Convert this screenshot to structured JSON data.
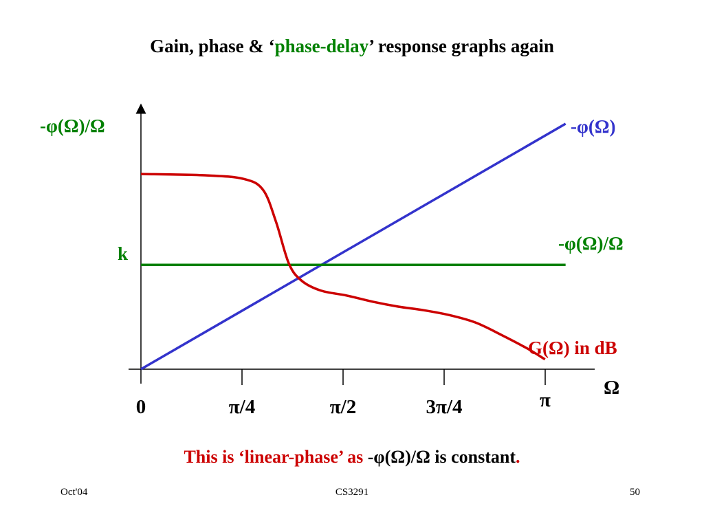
{
  "title": {
    "prefix": "Gain, phase & ‘",
    "highlight": "phase-delay",
    "suffix": "’ response graphs again"
  },
  "caption": {
    "part1": "This is ‘linear-phase’ as ",
    "part2": "-φ(Ω)/Ω",
    "part3": " is constant",
    "part4": "."
  },
  "footer": {
    "left": "Oct'04",
    "center": "CS3291",
    "right": "50"
  },
  "colors": {
    "phase": "#3333cc",
    "delay": "#008000",
    "gain": "#cc0000",
    "axis": "#000000"
  },
  "chart_data": {
    "type": "line",
    "xlabel": "Ω",
    "ylabel": "-φ(Ω)/Ω",
    "x_ticks": [
      "0",
      "π/4",
      "π/2",
      "3π/4",
      "π"
    ],
    "xlim": [
      0,
      3.14159
    ],
    "ylim": [
      0,
      1
    ],
    "y_tick_label": "k",
    "k_level": 0.425,
    "series": [
      {
        "name": "-φ(Ω)",
        "label": "-φ(Ω)",
        "color": "#3333cc",
        "x": [
          0,
          3.3
        ],
        "y": [
          0,
          1.0
        ]
      },
      {
        "name": "-φ(Ω)/Ω",
        "label": "-φ(Ω)/Ω",
        "color": "#008000",
        "x": [
          0,
          3.3
        ],
        "y": [
          0.425,
          0.425
        ]
      },
      {
        "name": "G(Ω) in dB",
        "label": "G(Ω) in dB",
        "color": "#cc0000",
        "x": [
          0,
          0.5,
          0.8,
          0.95,
          1.05,
          1.15,
          1.25,
          1.4,
          1.6,
          1.8,
          2.0,
          2.2,
          2.4,
          2.6,
          2.8,
          3.0,
          3.14
        ],
        "y": [
          0.795,
          0.79,
          0.775,
          0.73,
          0.6,
          0.43,
          0.36,
          0.32,
          0.3,
          0.275,
          0.255,
          0.24,
          0.22,
          0.19,
          0.14,
          0.085,
          0.04
        ]
      }
    ]
  }
}
